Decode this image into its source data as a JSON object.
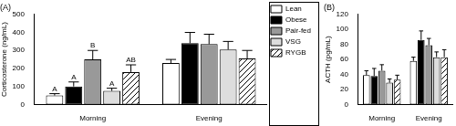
{
  "chart_data": [
    {
      "type": "bar",
      "title": "(A)",
      "ylabel": "Corticosterone (ng/mL)",
      "categories": [
        "Morning",
        "Evening"
      ],
      "series": [
        {
          "name": "Lean",
          "color": "#ffffff",
          "values": [
            50,
            230
          ],
          "errors": [
            10,
            20
          ],
          "letters": [
            "A",
            null
          ]
        },
        {
          "name": "Obese",
          "color": "#000000",
          "values": [
            100,
            340
          ],
          "errors": [
            25,
            60
          ],
          "letters": [
            "A",
            null
          ]
        },
        {
          "name": "Pair-fed",
          "color": "#999999",
          "values": [
            250,
            335
          ],
          "errors": [
            50,
            55
          ],
          "letters": [
            "B",
            null
          ]
        },
        {
          "name": "VSG",
          "color": "#dddddd",
          "values": [
            75,
            305
          ],
          "errors": [
            15,
            45
          ],
          "letters": [
            "A",
            null
          ]
        },
        {
          "name": "RYGB",
          "color": "#ffffff",
          "line_style": "hatched",
          "values": [
            180,
            255
          ],
          "errors": [
            40,
            45
          ],
          "letters": [
            "AB",
            null
          ]
        }
      ],
      "ylim": [
        0,
        500
      ],
      "yticks": [
        0,
        100,
        200,
        300,
        400,
        500
      ],
      "grid": false,
      "legend": "right"
    },
    {
      "type": "bar",
      "title": "(B)",
      "ylabel": "ACTH (pg/mL)",
      "categories": [
        "Morning",
        "Evening"
      ],
      "series": [
        {
          "name": "Lean",
          "color": "#ffffff",
          "values": [
            39,
            58
          ],
          "errors": [
            6,
            5
          ]
        },
        {
          "name": "Obese",
          "color": "#000000",
          "values": [
            38,
            86
          ],
          "errors": [
            10,
            12
          ]
        },
        {
          "name": "Pair-fed",
          "color": "#999999",
          "values": [
            45,
            79
          ],
          "errors": [
            8,
            9
          ]
        },
        {
          "name": "VSG",
          "color": "#dddddd",
          "values": [
            29,
            63
          ],
          "errors": [
            5,
            7
          ]
        },
        {
          "name": "RYGB",
          "color": "#ffffff",
          "line_style": "hatched",
          "values": [
            33,
            63
          ],
          "errors": [
            6,
            10
          ]
        }
      ],
      "ylim": [
        0,
        120
      ],
      "yticks": [
        0,
        20,
        40,
        60,
        80,
        100,
        120
      ],
      "grid": false
    }
  ]
}
